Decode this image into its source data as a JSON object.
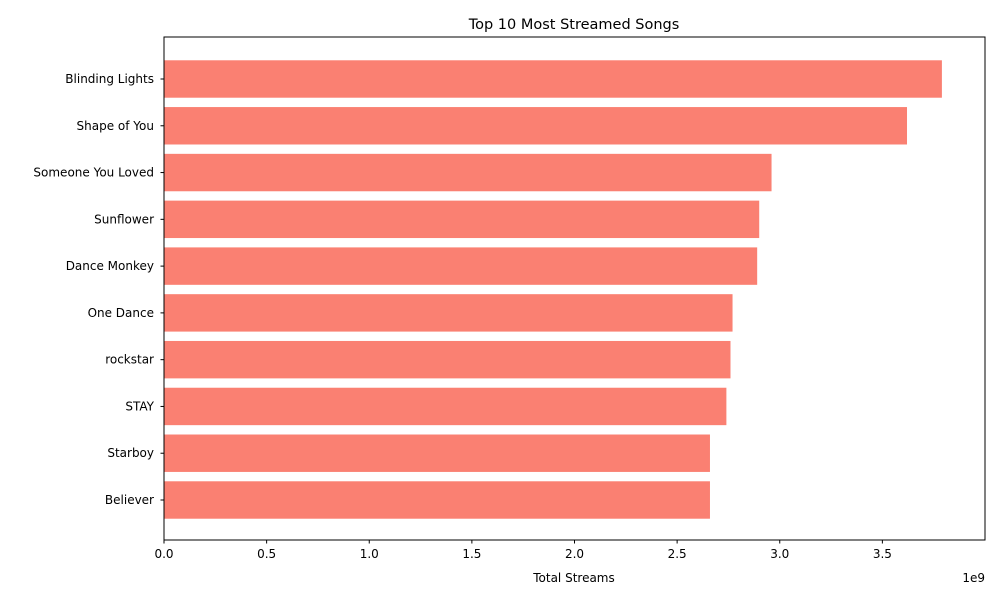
{
  "chart_data": {
    "type": "bar",
    "orientation": "horizontal",
    "title": "Top 10 Most Streamed Songs",
    "xlabel": "Total Streams",
    "ylabel": "",
    "offset_label": "1e9",
    "xlim": [
      0,
      4000000000.0
    ],
    "xticks": [
      0,
      500000000.0,
      1000000000.0,
      1500000000.0,
      2000000000.0,
      2500000000.0,
      3000000000.0,
      3500000000.0
    ],
    "xtick_labels": [
      "0.0",
      "0.5",
      "1.0",
      "1.5",
      "2.0",
      "2.5",
      "3.0",
      "3.5"
    ],
    "categories": [
      "Blinding Lights",
      "Shape of You",
      "Someone You Loved",
      "Sunflower",
      "Dance Monkey",
      "One Dance",
      "rockstar",
      "STAY",
      "Starboy",
      "Believer"
    ],
    "values": [
      3790000000.0,
      3620000000.0,
      2960000000.0,
      2900000000.0,
      2890000000.0,
      2770000000.0,
      2760000000.0,
      2740000000.0,
      2660000000.0,
      2660000000.0
    ],
    "bar_color": "#fa8072",
    "grid": false,
    "legend": "none"
  }
}
